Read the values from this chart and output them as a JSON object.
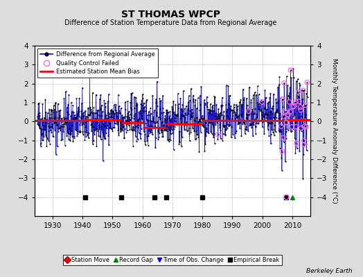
{
  "title": "ST THOMAS WPCP",
  "subtitle": "Difference of Station Temperature Data from Regional Average",
  "ylabel": "Monthly Temperature Anomaly Difference (°C)",
  "xlabel_ticks": [
    1930,
    1940,
    1950,
    1960,
    1970,
    1980,
    1990,
    2000,
    2010
  ],
  "ylim": [
    -5,
    4
  ],
  "yticks": [
    -4,
    -3,
    -2,
    -1,
    0,
    1,
    2,
    3,
    4
  ],
  "xlim": [
    1924,
    2016
  ],
  "data_color": "#0000cc",
  "dot_color": "#000000",
  "bias_color": "#ff0000",
  "qc_color": "#ff66ff",
  "bg_color": "#dddddd",
  "plot_bg_color": "#ffffff",
  "grid_color": "#bbbbbb",
  "watermark": "Berkeley Earth",
  "seed": 42,
  "bias_breaks": [
    1924,
    1941,
    1953,
    1960,
    1968,
    1980,
    2008,
    2016
  ],
  "bias_levels": [
    0.05,
    0.1,
    -0.05,
    -0.3,
    -0.15,
    0.05,
    0.1,
    0.1
  ],
  "empirical_breaks": [
    1941,
    1953,
    1964,
    1968,
    1980,
    2008
  ],
  "record_gaps": [
    2010
  ],
  "time_obs_changes": [],
  "station_moves": []
}
